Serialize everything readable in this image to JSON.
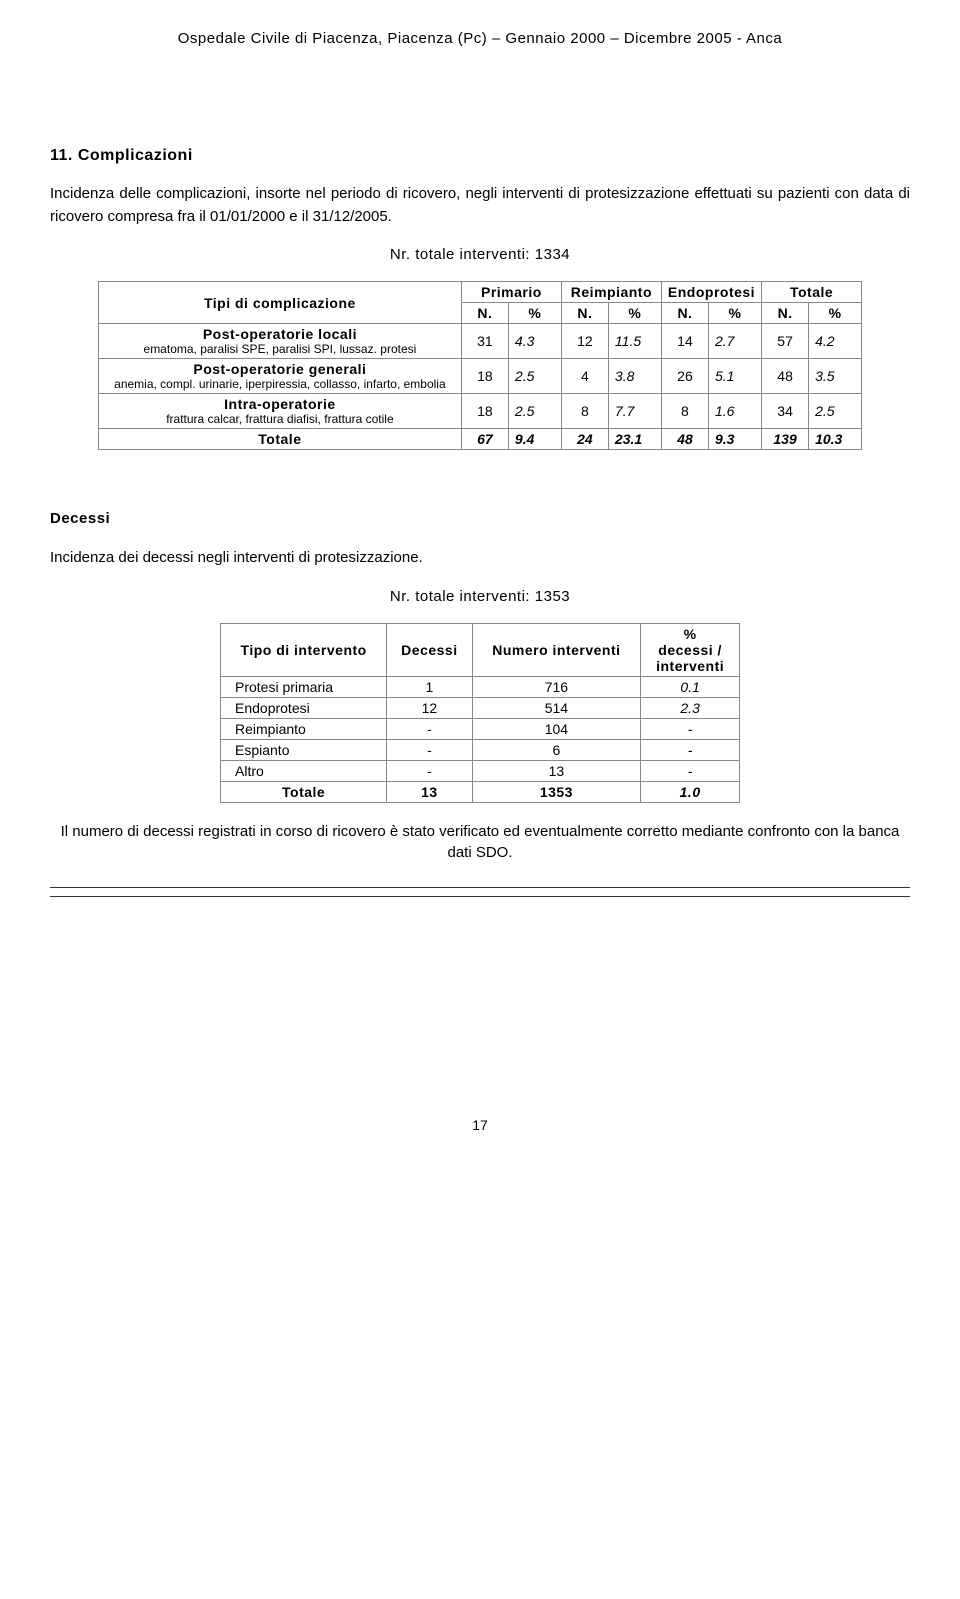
{
  "header": "Ospedale Civile di Piacenza, Piacenza (Pc) – Gennaio 2000 – Dicembre 2005 - Anca",
  "section": {
    "number": "11.",
    "title": "Complicazioni",
    "intro": "Incidenza delle complicazioni, insorte nel periodo di ricovero, negli interventi di protesizzazione effettuati su pazienti con data di ricovero compresa fra il 01/01/2000 e il 31/12/2005.",
    "interventi": "Nr. totale interventi: 1334"
  },
  "table1": {
    "col_header_main": "Tipi di complicazione",
    "group_headers": [
      "Primario",
      "Reimpianto",
      "Endoprotesi",
      "Totale"
    ],
    "sub_headers": [
      "N.",
      "%",
      "N.",
      "%",
      "N.",
      "%",
      "N.",
      "%"
    ],
    "rows": [
      {
        "bold": "Post-operatorie locali",
        "sub": "ematoma, paralisi SPE, paralisi SPI, lussaz. protesi",
        "v": [
          "31",
          "4.3",
          "12",
          "11.5",
          "14",
          "2.7",
          "57",
          "4.2"
        ]
      },
      {
        "bold": "Post-operatorie generali",
        "sub": "anemia, compl. urinarie, iperpiressia, collasso, infarto, embolia",
        "v": [
          "18",
          "2.5",
          "4",
          "3.8",
          "26",
          "5.1",
          "48",
          "3.5"
        ]
      },
      {
        "bold": "Intra-operatorie",
        "sub": "frattura calcar, frattura diafisi, frattura cotile",
        "v": [
          "18",
          "2.5",
          "8",
          "7.7",
          "8",
          "1.6",
          "34",
          "2.5"
        ]
      }
    ],
    "total_label": "Totale",
    "total_v": [
      "67",
      "9.4",
      "24",
      "23.1",
      "48",
      "9.3",
      "139",
      "10.3"
    ]
  },
  "decessi": {
    "title": "Decessi",
    "intro": "Incidenza dei decessi negli interventi di protesizzazione.",
    "interventi": "Nr. totale interventi: 1353"
  },
  "table2": {
    "headers": {
      "tipo": "Tipo di intervento",
      "decessi": "Decessi",
      "numero": "Numero interventi",
      "pct_line1": "%",
      "pct_line2": "decessi /",
      "pct_line3": "interventi"
    },
    "rows": [
      {
        "tipo": "Protesi primaria",
        "decessi": "1",
        "numero": "716",
        "pct": "0.1"
      },
      {
        "tipo": "Endoprotesi",
        "decessi": "12",
        "numero": "514",
        "pct": "2.3"
      },
      {
        "tipo": "Reimpianto",
        "decessi": "-",
        "numero": "104",
        "pct": "-"
      },
      {
        "tipo": "Espianto",
        "decessi": "-",
        "numero": "6",
        "pct": "-"
      },
      {
        "tipo": "Altro",
        "decessi": "-",
        "numero": "13",
        "pct": "-"
      }
    ],
    "total": {
      "tipo": "Totale",
      "decessi": "13",
      "numero": "1353",
      "pct": "1.0"
    }
  },
  "footnote": "Il numero di decessi registrati in corso di ricovero è stato verificato ed eventualmente corretto mediante confronto con la banca dati SDO.",
  "pagenum": "17"
}
